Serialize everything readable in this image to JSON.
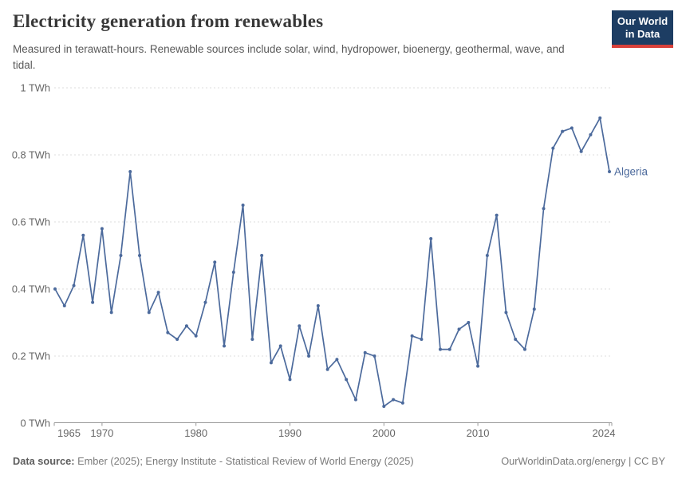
{
  "header": {
    "title": "Electricity generation from renewables",
    "subtitle": "Measured in terawatt-hours. Renewable sources include solar, wind, hydropower, bioenergy, geothermal, wave, and tidal.",
    "logo": {
      "line1": "Our World",
      "line2": "in Data",
      "bg_color": "#1d3d63",
      "stripe_color": "#d8403a"
    }
  },
  "chart_data": {
    "type": "line",
    "title": "Electricity generation from renewables",
    "unit": "TWh",
    "series": [
      {
        "name": "Algeria",
        "values": [
          0.4,
          0.35,
          0.41,
          0.56,
          0.36,
          0.58,
          0.33,
          0.5,
          0.75,
          0.5,
          0.33,
          0.39,
          0.27,
          0.25,
          0.29,
          0.26,
          0.36,
          0.48,
          0.23,
          0.45,
          0.65,
          0.25,
          0.5,
          0.18,
          0.23,
          0.13,
          0.29,
          0.2,
          0.35,
          0.16,
          0.19,
          0.13,
          0.07,
          0.21,
          0.2,
          0.05,
          0.07,
          0.06,
          0.26,
          0.25,
          0.55,
          0.22,
          0.22,
          0.28,
          0.3,
          0.17,
          0.5,
          0.62,
          0.33,
          0.25,
          0.22,
          0.34,
          0.64,
          0.82,
          0.87,
          0.88,
          0.81,
          0.86,
          0.91,
          0.75
        ]
      }
    ],
    "x": [
      1965,
      1966,
      1967,
      1968,
      1969,
      1970,
      1971,
      1972,
      1973,
      1974,
      1975,
      1976,
      1977,
      1978,
      1979,
      1980,
      1981,
      1982,
      1983,
      1984,
      1985,
      1986,
      1987,
      1988,
      1989,
      1990,
      1991,
      1992,
      1993,
      1994,
      1995,
      1996,
      1997,
      1998,
      1999,
      2000,
      2001,
      2002,
      2003,
      2004,
      2005,
      2006,
      2007,
      2008,
      2009,
      2010,
      2011,
      2012,
      2013,
      2014,
      2015,
      2016,
      2017,
      2018,
      2019,
      2020,
      2021,
      2022,
      2023,
      2024
    ],
    "xlim": [
      1965,
      2024
    ],
    "ylim": [
      0,
      1
    ],
    "ytick_values": [
      0,
      0.2,
      0.4,
      0.6,
      0.8,
      1
    ],
    "ytick_labels": [
      "0 TWh",
      "0.2 TWh",
      "0.4 TWh",
      "0.6 TWh",
      "0.8 TWh",
      "1 TWh"
    ],
    "xtick_labels": [
      "1965",
      "1970",
      "1980",
      "1990",
      "2000",
      "2010",
      "2024"
    ],
    "xtick_years": [
      1965,
      1970,
      1980,
      1990,
      2000,
      2010,
      2024
    ],
    "grid": true,
    "legend_position": "line-end-right",
    "line_color": "#4c6a9c",
    "grid_color": "#dcdcdc",
    "axis_color": "#999999",
    "tick_label_color": "#666666",
    "end_label": "Algeria"
  },
  "footer": {
    "source_label": "Data source:",
    "source_text": " Ember (2025); Energy Institute - Statistical Review of World Energy (2025)",
    "rights": "OurWorldinData.org/energy | CC BY"
  }
}
